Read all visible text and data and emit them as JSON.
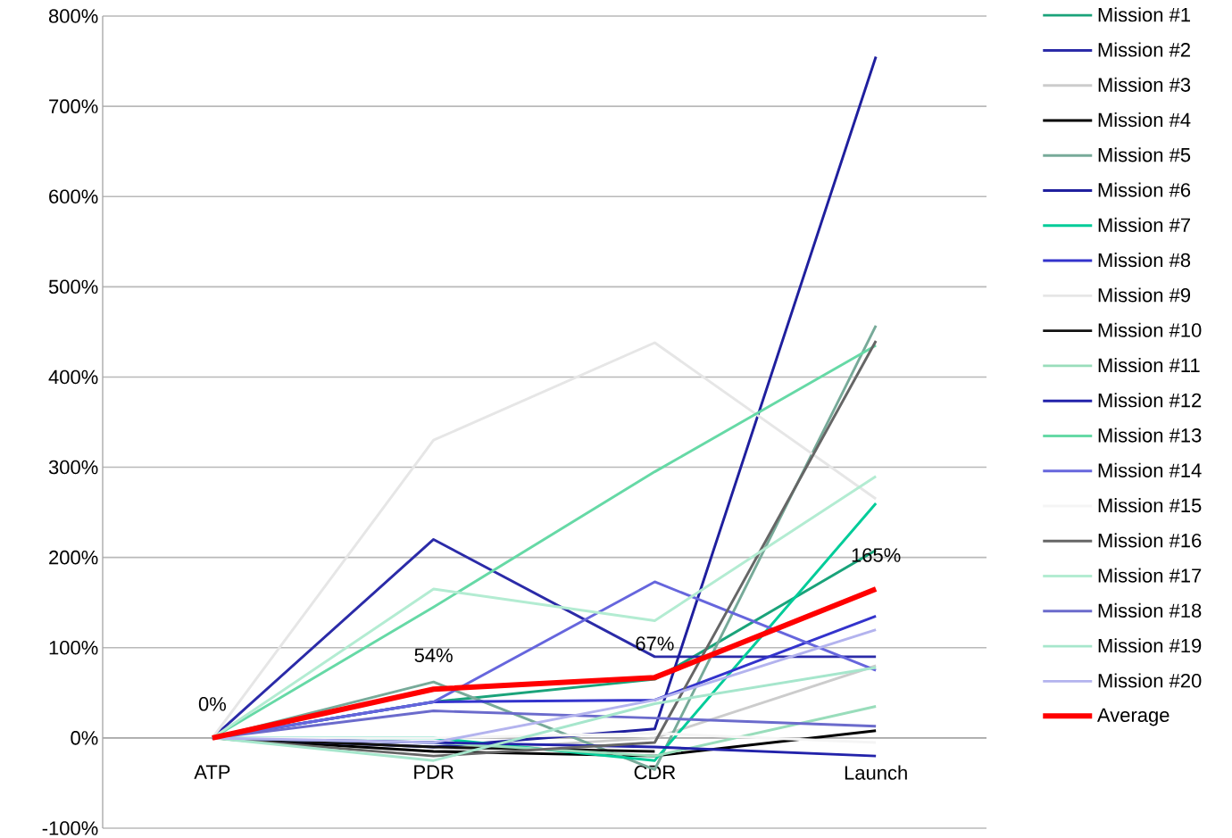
{
  "chart_data": {
    "type": "line",
    "categories": [
      "ATP",
      "PDR",
      "CDR",
      "Launch"
    ],
    "ylim": [
      -100,
      800
    ],
    "yticks": [
      {
        "value": -100,
        "label": "-100%"
      },
      {
        "value": 0,
        "label": "0%"
      },
      {
        "value": 100,
        "label": "100%"
      },
      {
        "value": 200,
        "label": "200%"
      },
      {
        "value": 300,
        "label": "300%"
      },
      {
        "value": 400,
        "label": "400%"
      },
      {
        "value": 500,
        "label": "500%"
      },
      {
        "value": 600,
        "label": "600%"
      },
      {
        "value": 700,
        "label": "700%"
      },
      {
        "value": 800,
        "label": "800%"
      }
    ],
    "grid": "y",
    "legend": "right",
    "marker": "none",
    "line_style": "solid",
    "series": [
      {
        "name": "Mission #1",
        "color": "#1aa37a",
        "values": [
          0,
          40,
          65,
          208
        ]
      },
      {
        "name": "Mission #2",
        "color": "#2b2ba8",
        "values": [
          0,
          220,
          90,
          90
        ]
      },
      {
        "name": "Mission #3",
        "color": "#cccccc",
        "values": [
          0,
          -15,
          0,
          80
        ]
      },
      {
        "name": "Mission #4",
        "color": "#000000",
        "values": [
          0,
          -15,
          -20,
          8
        ]
      },
      {
        "name": "Mission #5",
        "color": "#77aa99",
        "values": [
          0,
          62,
          -35,
          457
        ]
      },
      {
        "name": "Mission #6",
        "color": "#1f1f9e",
        "values": [
          0,
          -10,
          10,
          755
        ]
      },
      {
        "name": "Mission #7",
        "color": "#00cc99",
        "values": [
          0,
          0,
          -25,
          260
        ]
      },
      {
        "name": "Mission #8",
        "color": "#3333cc",
        "values": [
          0,
          40,
          42,
          135
        ]
      },
      {
        "name": "Mission #9",
        "color": "#e6e6e6",
        "values": [
          0,
          330,
          438,
          265
        ]
      },
      {
        "name": "Mission #10",
        "color": "#111111",
        "values": [
          0,
          -10,
          -15,
          null
        ]
      },
      {
        "name": "Mission #11",
        "color": "#99ddbb",
        "values": [
          0,
          -5,
          -20,
          35
        ]
      },
      {
        "name": "Mission #12",
        "color": "#2222aa",
        "values": [
          0,
          -5,
          -10,
          -20
        ]
      },
      {
        "name": "Mission #13",
        "color": "#66d9a6",
        "values": [
          0,
          145,
          295,
          435
        ]
      },
      {
        "name": "Mission #14",
        "color": "#6666dd",
        "values": [
          0,
          40,
          173,
          75
        ]
      },
      {
        "name": "Mission #15",
        "color": "#f5f5f5",
        "values": [
          0,
          0,
          5,
          -5
        ]
      },
      {
        "name": "Mission #16",
        "color": "#666666",
        "values": [
          0,
          -20,
          -5,
          440
        ]
      },
      {
        "name": "Mission #17",
        "color": "#b3ecd2",
        "values": [
          0,
          165,
          130,
          290
        ]
      },
      {
        "name": "Mission #18",
        "color": "#6b6bcc",
        "values": [
          0,
          30,
          22,
          13
        ]
      },
      {
        "name": "Mission #19",
        "color": "#a6e6cc",
        "values": [
          0,
          -25,
          38,
          78
        ]
      },
      {
        "name": "Mission #20",
        "color": "#b3b3ee",
        "values": [
          0,
          -5,
          42,
          120
        ]
      },
      {
        "name": "Average",
        "color": "#ff0000",
        "values": [
          0,
          54,
          67,
          165
        ],
        "value_labels": [
          "0%",
          "54%",
          "67%",
          "165%"
        ]
      }
    ]
  }
}
